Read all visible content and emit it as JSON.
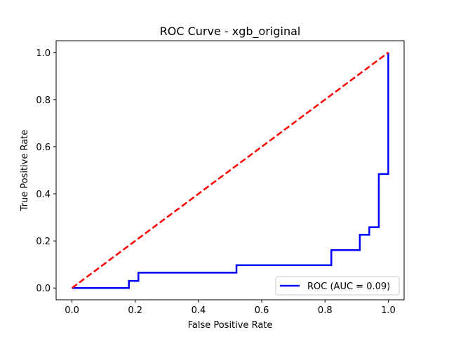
{
  "chart_data": {
    "type": "line",
    "title": "ROC Curve - xgb_original",
    "xlabel": "False Positive Rate",
    "ylabel": "True Positive Rate",
    "xlim": [
      -0.05,
      1.05
    ],
    "ylim": [
      -0.05,
      1.05
    ],
    "xticks": [
      0.0,
      0.2,
      0.4,
      0.6,
      0.8,
      1.0
    ],
    "yticks": [
      0.0,
      0.2,
      0.4,
      0.6,
      0.8,
      1.0
    ],
    "xtick_labels": [
      "0.0",
      "0.2",
      "0.4",
      "0.6",
      "0.8",
      "1.0"
    ],
    "ytick_labels": [
      "0.0",
      "0.2",
      "0.4",
      "0.6",
      "0.8",
      "1.0"
    ],
    "grid": false,
    "legend_position": "lower-right",
    "series": [
      {
        "name": "ROC (AUC = 0.09)",
        "color": "#0000ff",
        "style": "solid",
        "x": [
          0.0,
          0.18,
          0.18,
          0.21,
          0.21,
          0.52,
          0.52,
          0.82,
          0.82,
          0.91,
          0.91,
          0.94,
          0.94,
          0.97,
          0.97,
          1.0,
          1.0
        ],
        "y": [
          0.0,
          0.0,
          0.03,
          0.03,
          0.065,
          0.065,
          0.097,
          0.097,
          0.161,
          0.161,
          0.226,
          0.226,
          0.258,
          0.258,
          0.484,
          0.484,
          1.0
        ]
      },
      {
        "name": "",
        "color": "#ff0000",
        "style": "dashed",
        "x": [
          0.0,
          1.0
        ],
        "y": [
          0.0,
          1.0
        ]
      }
    ]
  }
}
